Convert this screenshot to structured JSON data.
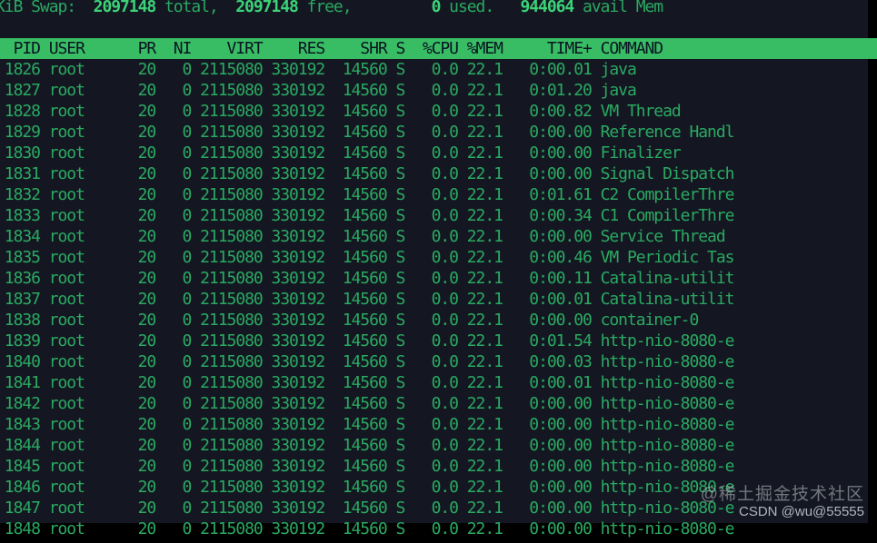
{
  "terminal": {
    "swap_line": {
      "segments": [
        {
          "text": "KiB Swap:  ",
          "bold": false
        },
        {
          "text": "2097148",
          "bold": true
        },
        {
          "text": " total,  ",
          "bold": false
        },
        {
          "text": "2097148",
          "bold": true
        },
        {
          "text": " free,         ",
          "bold": false
        },
        {
          "text": "0",
          "bold": true
        },
        {
          "text": " used.   ",
          "bold": false
        },
        {
          "text": "944064",
          "bold": true
        },
        {
          "text": " avail Mem",
          "bold": false
        }
      ]
    },
    "process_table": {
      "columns": [
        {
          "key": "pid",
          "label": "PID",
          "width": 5,
          "align": "right",
          "gap": 0
        },
        {
          "key": "user",
          "label": "USER",
          "width": 8,
          "align": "left",
          "gap": 1
        },
        {
          "key": "pr",
          "label": "PR",
          "width": 4,
          "align": "right",
          "gap": 0
        },
        {
          "key": "ni",
          "label": "NI",
          "width": 4,
          "align": "right",
          "gap": 0
        },
        {
          "key": "virt",
          "label": "VIRT",
          "width": 8,
          "align": "right",
          "gap": 0
        },
        {
          "key": "res",
          "label": "RES",
          "width": 7,
          "align": "right",
          "gap": 0
        },
        {
          "key": "shr",
          "label": "SHR",
          "width": 7,
          "align": "right",
          "gap": 0
        },
        {
          "key": "s",
          "label": "S",
          "width": 2,
          "align": "right",
          "gap": 0
        },
        {
          "key": "cpu",
          "label": "%CPU",
          "width": 6,
          "align": "right",
          "gap": 0
        },
        {
          "key": "mem",
          "label": "%MEM",
          "width": 5,
          "align": "right",
          "gap": 0
        },
        {
          "key": "time",
          "label": "TIME+",
          "width": 10,
          "align": "right",
          "gap": 0
        },
        {
          "key": "command",
          "label": "COMMAND",
          "width": 0,
          "align": "left",
          "gap": 1
        }
      ],
      "rows": [
        {
          "pid": "1826",
          "user": "root",
          "pr": "20",
          "ni": "0",
          "virt": "2115080",
          "res": "330192",
          "shr": "14560",
          "s": "S",
          "cpu": "0.0",
          "mem": "22.1",
          "time": "0:00.01",
          "command": "java"
        },
        {
          "pid": "1827",
          "user": "root",
          "pr": "20",
          "ni": "0",
          "virt": "2115080",
          "res": "330192",
          "shr": "14560",
          "s": "S",
          "cpu": "0.0",
          "mem": "22.1",
          "time": "0:01.20",
          "command": "java"
        },
        {
          "pid": "1828",
          "user": "root",
          "pr": "20",
          "ni": "0",
          "virt": "2115080",
          "res": "330192",
          "shr": "14560",
          "s": "S",
          "cpu": "0.0",
          "mem": "22.1",
          "time": "0:00.82",
          "command": "VM Thread"
        },
        {
          "pid": "1829",
          "user": "root",
          "pr": "20",
          "ni": "0",
          "virt": "2115080",
          "res": "330192",
          "shr": "14560",
          "s": "S",
          "cpu": "0.0",
          "mem": "22.1",
          "time": "0:00.00",
          "command": "Reference Handl"
        },
        {
          "pid": "1830",
          "user": "root",
          "pr": "20",
          "ni": "0",
          "virt": "2115080",
          "res": "330192",
          "shr": "14560",
          "s": "S",
          "cpu": "0.0",
          "mem": "22.1",
          "time": "0:00.00",
          "command": "Finalizer"
        },
        {
          "pid": "1831",
          "user": "root",
          "pr": "20",
          "ni": "0",
          "virt": "2115080",
          "res": "330192",
          "shr": "14560",
          "s": "S",
          "cpu": "0.0",
          "mem": "22.1",
          "time": "0:00.00",
          "command": "Signal Dispatch"
        },
        {
          "pid": "1832",
          "user": "root",
          "pr": "20",
          "ni": "0",
          "virt": "2115080",
          "res": "330192",
          "shr": "14560",
          "s": "S",
          "cpu": "0.0",
          "mem": "22.1",
          "time": "0:01.61",
          "command": "C2 CompilerThre"
        },
        {
          "pid": "1833",
          "user": "root",
          "pr": "20",
          "ni": "0",
          "virt": "2115080",
          "res": "330192",
          "shr": "14560",
          "s": "S",
          "cpu": "0.0",
          "mem": "22.1",
          "time": "0:00.34",
          "command": "C1 CompilerThre"
        },
        {
          "pid": "1834",
          "user": "root",
          "pr": "20",
          "ni": "0",
          "virt": "2115080",
          "res": "330192",
          "shr": "14560",
          "s": "S",
          "cpu": "0.0",
          "mem": "22.1",
          "time": "0:00.00",
          "command": "Service Thread"
        },
        {
          "pid": "1835",
          "user": "root",
          "pr": "20",
          "ni": "0",
          "virt": "2115080",
          "res": "330192",
          "shr": "14560",
          "s": "S",
          "cpu": "0.0",
          "mem": "22.1",
          "time": "0:00.46",
          "command": "VM Periodic Tas"
        },
        {
          "pid": "1836",
          "user": "root",
          "pr": "20",
          "ni": "0",
          "virt": "2115080",
          "res": "330192",
          "shr": "14560",
          "s": "S",
          "cpu": "0.0",
          "mem": "22.1",
          "time": "0:00.11",
          "command": "Catalina-utilit"
        },
        {
          "pid": "1837",
          "user": "root",
          "pr": "20",
          "ni": "0",
          "virt": "2115080",
          "res": "330192",
          "shr": "14560",
          "s": "S",
          "cpu": "0.0",
          "mem": "22.1",
          "time": "0:00.01",
          "command": "Catalina-utilit"
        },
        {
          "pid": "1838",
          "user": "root",
          "pr": "20",
          "ni": "0",
          "virt": "2115080",
          "res": "330192",
          "shr": "14560",
          "s": "S",
          "cpu": "0.0",
          "mem": "22.1",
          "time": "0:00.00",
          "command": "container-0"
        },
        {
          "pid": "1839",
          "user": "root",
          "pr": "20",
          "ni": "0",
          "virt": "2115080",
          "res": "330192",
          "shr": "14560",
          "s": "S",
          "cpu": "0.0",
          "mem": "22.1",
          "time": "0:01.54",
          "command": "http-nio-8080-e"
        },
        {
          "pid": "1840",
          "user": "root",
          "pr": "20",
          "ni": "0",
          "virt": "2115080",
          "res": "330192",
          "shr": "14560",
          "s": "S",
          "cpu": "0.0",
          "mem": "22.1",
          "time": "0:00.03",
          "command": "http-nio-8080-e"
        },
        {
          "pid": "1841",
          "user": "root",
          "pr": "20",
          "ni": "0",
          "virt": "2115080",
          "res": "330192",
          "shr": "14560",
          "s": "S",
          "cpu": "0.0",
          "mem": "22.1",
          "time": "0:00.01",
          "command": "http-nio-8080-e"
        },
        {
          "pid": "1842",
          "user": "root",
          "pr": "20",
          "ni": "0",
          "virt": "2115080",
          "res": "330192",
          "shr": "14560",
          "s": "S",
          "cpu": "0.0",
          "mem": "22.1",
          "time": "0:00.00",
          "command": "http-nio-8080-e"
        },
        {
          "pid": "1843",
          "user": "root",
          "pr": "20",
          "ni": "0",
          "virt": "2115080",
          "res": "330192",
          "shr": "14560",
          "s": "S",
          "cpu": "0.0",
          "mem": "22.1",
          "time": "0:00.00",
          "command": "http-nio-8080-e"
        },
        {
          "pid": "1844",
          "user": "root",
          "pr": "20",
          "ni": "0",
          "virt": "2115080",
          "res": "330192",
          "shr": "14560",
          "s": "S",
          "cpu": "0.0",
          "mem": "22.1",
          "time": "0:00.00",
          "command": "http-nio-8080-e"
        },
        {
          "pid": "1845",
          "user": "root",
          "pr": "20",
          "ni": "0",
          "virt": "2115080",
          "res": "330192",
          "shr": "14560",
          "s": "S",
          "cpu": "0.0",
          "mem": "22.1",
          "time": "0:00.00",
          "command": "http-nio-8080-e"
        },
        {
          "pid": "1846",
          "user": "root",
          "pr": "20",
          "ni": "0",
          "virt": "2115080",
          "res": "330192",
          "shr": "14560",
          "s": "S",
          "cpu": "0.0",
          "mem": "22.1",
          "time": "0:00.00",
          "command": "http-nio-8080-e"
        },
        {
          "pid": "1847",
          "user": "root",
          "pr": "20",
          "ni": "0",
          "virt": "2115080",
          "res": "330192",
          "shr": "14560",
          "s": "S",
          "cpu": "0.0",
          "mem": "22.1",
          "time": "0:00.00",
          "command": "http-nio-8080-e"
        },
        {
          "pid": "1848",
          "user": "root",
          "pr": "20",
          "ni": "0",
          "virt": "2115080",
          "res": "330192",
          "shr": "14560",
          "s": "S",
          "cpu": "0.0",
          "mem": "22.1",
          "time": "0:00.00",
          "command": "http-nio-8080-e"
        }
      ]
    }
  },
  "watermark": {
    "line1": "@稀土掘金技术社区",
    "line2": "CSDN @wu@55555"
  },
  "colors": {
    "background": "#141722",
    "text_green": "#2aa961",
    "bold_green": "#3bd278",
    "header_bg": "#39bd64",
    "header_text": "#0a1422"
  }
}
